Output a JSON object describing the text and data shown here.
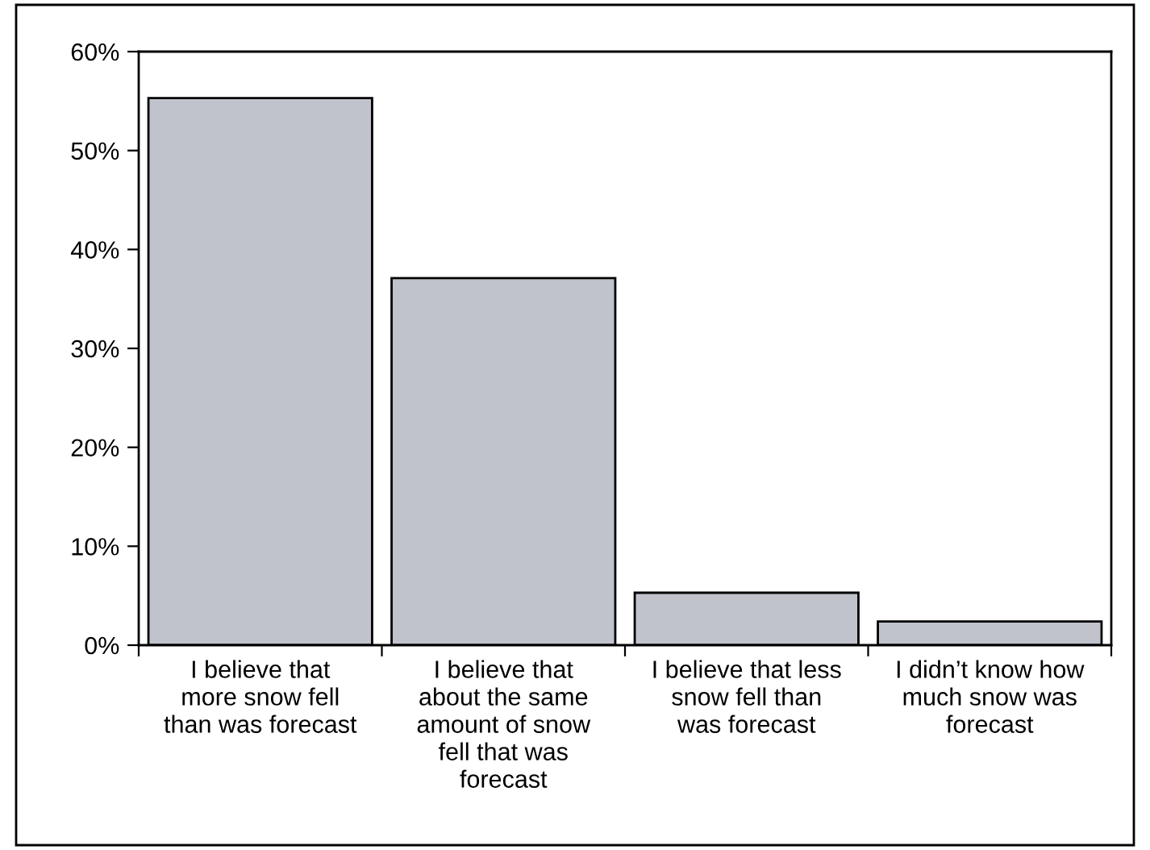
{
  "chart_data": {
    "type": "bar",
    "categories": [
      "I believe that\nmore snow fell\nthan was forecast",
      "I believe that\nabout the same\namount of snow\nfell that was\nforecast",
      "I believe that less\nsnow fell than\nwas forecast",
      "I didn’t know how\nmuch snow was\nforecast"
    ],
    "values": [
      55.3,
      37.1,
      5.3,
      2.4
    ],
    "color": "#c0c3cb",
    "ylim": [
      0,
      60
    ],
    "yticks": [
      {
        "value": 0,
        "label": "0%"
      },
      {
        "value": 10,
        "label": "10%"
      },
      {
        "value": 20,
        "label": "20%"
      },
      {
        "value": 30,
        "label": "30%"
      },
      {
        "value": 40,
        "label": "40%"
      },
      {
        "value": 50,
        "label": "50%"
      },
      {
        "value": 60,
        "label": "60%"
      }
    ],
    "grid": false,
    "legend": false
  }
}
